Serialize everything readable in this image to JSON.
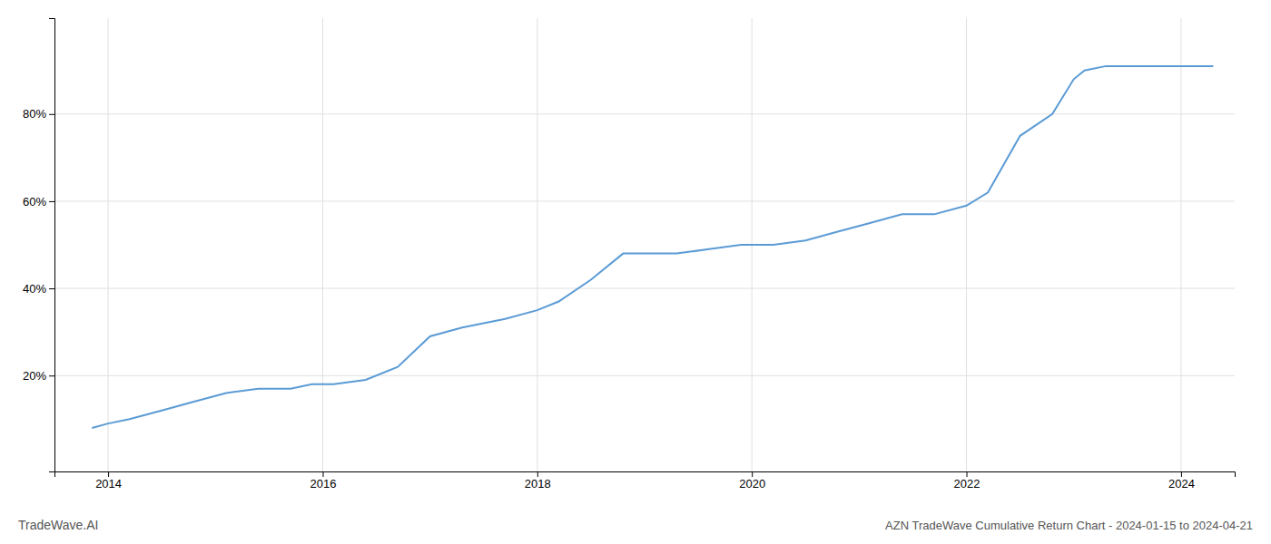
{
  "chart_data": {
    "type": "line",
    "title": "AZN TradeWave Cumulative Return Chart - 2024-01-15 to 2024-04-21",
    "annotations": [
      "TradeWave.AI"
    ],
    "x": [
      2013.85,
      2014.0,
      2014.2,
      2014.5,
      2014.8,
      2015.1,
      2015.4,
      2015.7,
      2015.9,
      2016.1,
      2016.4,
      2016.7,
      2017.0,
      2017.3,
      2017.7,
      2018.0,
      2018.2,
      2018.5,
      2018.8,
      2019.0,
      2019.3,
      2019.6,
      2019.9,
      2020.2,
      2020.5,
      2020.8,
      2021.1,
      2021.4,
      2021.7,
      2022.0,
      2022.2,
      2022.5,
      2022.8,
      2023.0,
      2023.1,
      2023.3,
      2023.5,
      2023.7,
      2024.0,
      2024.3
    ],
    "values": [
      8,
      9,
      10,
      12,
      14,
      16,
      17,
      17,
      18,
      18,
      19,
      22,
      29,
      31,
      33,
      35,
      37,
      42,
      48,
      48,
      48,
      49,
      50,
      50,
      51,
      53,
      55,
      57,
      57,
      59,
      62,
      75,
      80,
      88,
      90,
      91,
      91,
      91,
      91,
      91
    ],
    "color": "#5b9bd5",
    "xlim": [
      2013.5,
      2024.5
    ],
    "ylim": [
      -2,
      102
    ],
    "xticks": [
      2014,
      2016,
      2018,
      2020,
      2022,
      2024
    ],
    "yticks": [
      {
        "value": 20,
        "label": "20%"
      },
      {
        "value": 40,
        "label": "40%"
      },
      {
        "value": 60,
        "label": "60%"
      },
      {
        "value": 80,
        "label": "80%"
      }
    ],
    "grid": true
  }
}
